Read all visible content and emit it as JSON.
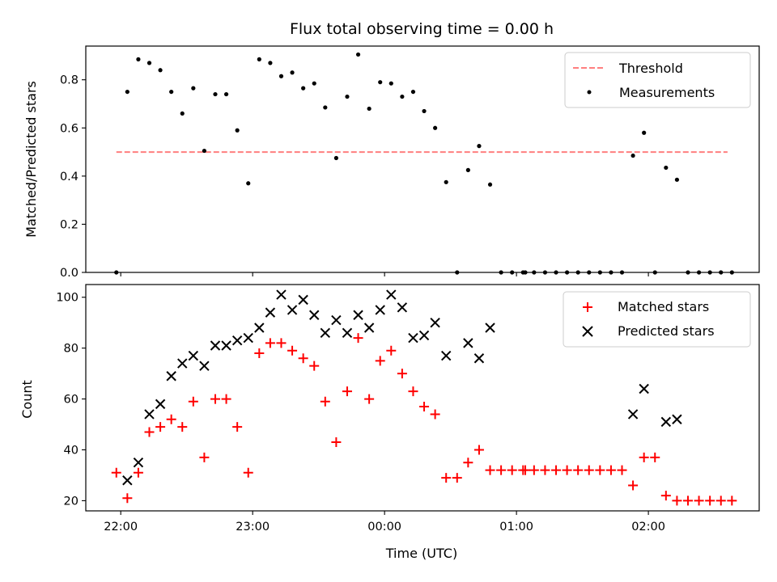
{
  "chart_data": [
    {
      "type": "scatter",
      "title": "Flux total observing time = 0.00 h",
      "xlabel": "",
      "ylabel": "Matched/Predicted stars",
      "ylim": [
        0,
        0.94
      ],
      "yticks": [
        0.0,
        0.2,
        0.4,
        0.6,
        0.8
      ],
      "ytick_labels": [
        "0.0",
        "0.2",
        "0.4",
        "0.6",
        "0.8"
      ],
      "xlim": [
        -15.9,
        290.4
      ],
      "x_unit": "minutes after 22:00 UTC",
      "xticks": [
        0,
        60,
        120,
        180,
        240
      ],
      "xtick_labels": [
        "",
        "",
        "",
        "",
        ""
      ],
      "legend_position": "top-right",
      "threshold": {
        "name": "Threshold",
        "value": 0.5,
        "x_start": -2,
        "x_end": 276,
        "color": "#ff7f7f",
        "style": "dashed"
      },
      "series": [
        {
          "name": "Measurements",
          "color": "#000000",
          "marker": "dot",
          "points": [
            [
              -2,
              0.0
            ],
            [
              3,
              0.75
            ],
            [
              8,
              0.885
            ],
            [
              13,
              0.87
            ],
            [
              18,
              0.84
            ],
            [
              23,
              0.75
            ],
            [
              28,
              0.66
            ],
            [
              33,
              0.765
            ],
            [
              38,
              0.505
            ],
            [
              43,
              0.74
            ],
            [
              48,
              0.74
            ],
            [
              53,
              0.59
            ],
            [
              58,
              0.37
            ],
            [
              63,
              0.885
            ],
            [
              68,
              0.87
            ],
            [
              73,
              0.815
            ],
            [
              78,
              0.83
            ],
            [
              83,
              0.765
            ],
            [
              88,
              0.785
            ],
            [
              93,
              0.685
            ],
            [
              98,
              0.475
            ],
            [
              103,
              0.73
            ],
            [
              108,
              0.905
            ],
            [
              113,
              0.68
            ],
            [
              118,
              0.79
            ],
            [
              123,
              0.785
            ],
            [
              128,
              0.73
            ],
            [
              133,
              0.75
            ],
            [
              138,
              0.67
            ],
            [
              143,
              0.6
            ],
            [
              148,
              0.375
            ],
            [
              153,
              0.0
            ],
            [
              158,
              0.425
            ],
            [
              163,
              0.525
            ],
            [
              168,
              0.365
            ],
            [
              173,
              0.0
            ],
            [
              178,
              0.0
            ],
            [
              183,
              0.0
            ],
            [
              184,
              0.0
            ],
            [
              188,
              0.0
            ],
            [
              193,
              0.0
            ],
            [
              198,
              0.0
            ],
            [
              203,
              0.0
            ],
            [
              208,
              0.0
            ],
            [
              213,
              0.0
            ],
            [
              218,
              0.0
            ],
            [
              223,
              0.0
            ],
            [
              228,
              0.0
            ],
            [
              233,
              0.485
            ],
            [
              238,
              0.58
            ],
            [
              243,
              0.0
            ],
            [
              248,
              0.435
            ],
            [
              253,
              0.385
            ],
            [
              258,
              0.0
            ],
            [
              263,
              0.0
            ],
            [
              268,
              0.0
            ],
            [
              273,
              0.0
            ],
            [
              278,
              0.0
            ]
          ]
        }
      ]
    },
    {
      "type": "scatter",
      "title": "",
      "xlabel": "Time (UTC)",
      "ylabel": "Count",
      "ylim": [
        16,
        105
      ],
      "yticks": [
        20,
        40,
        60,
        80,
        100
      ],
      "ytick_labels": [
        "20",
        "40",
        "60",
        "80",
        "100"
      ],
      "xlim": [
        -15.9,
        290.4
      ],
      "x_unit": "minutes after 22:00 UTC",
      "xticks": [
        0,
        60,
        120,
        180,
        240
      ],
      "xtick_labels": [
        "22:00",
        "23:00",
        "00:00",
        "01:00",
        "02:00"
      ],
      "legend_position": "top-right",
      "series": [
        {
          "name": "Matched stars",
          "color": "#ff0000",
          "marker": "plus",
          "points": [
            [
              -2,
              31
            ],
            [
              3,
              21
            ],
            [
              8,
              31
            ],
            [
              13,
              47
            ],
            [
              18,
              49
            ],
            [
              23,
              52
            ],
            [
              28,
              49
            ],
            [
              33,
              59
            ],
            [
              38,
              37
            ],
            [
              43,
              60
            ],
            [
              48,
              60
            ],
            [
              53,
              49
            ],
            [
              58,
              31
            ],
            [
              63,
              78
            ],
            [
              68,
              82
            ],
            [
              73,
              82
            ],
            [
              78,
              79
            ],
            [
              83,
              76
            ],
            [
              88,
              73
            ],
            [
              93,
              59
            ],
            [
              98,
              43
            ],
            [
              103,
              63
            ],
            [
              108,
              84
            ],
            [
              113,
              60
            ],
            [
              118,
              75
            ],
            [
              123,
              79
            ],
            [
              128,
              70
            ],
            [
              133,
              63
            ],
            [
              138,
              57
            ],
            [
              143,
              54
            ],
            [
              148,
              29
            ],
            [
              153,
              29
            ],
            [
              158,
              35
            ],
            [
              163,
              40
            ],
            [
              168,
              32
            ],
            [
              173,
              32
            ],
            [
              178,
              32
            ],
            [
              183,
              32
            ],
            [
              184,
              32
            ],
            [
              188,
              32
            ],
            [
              193,
              32
            ],
            [
              198,
              32
            ],
            [
              203,
              32
            ],
            [
              208,
              32
            ],
            [
              213,
              32
            ],
            [
              218,
              32
            ],
            [
              223,
              32
            ],
            [
              228,
              32
            ],
            [
              233,
              26
            ],
            [
              238,
              37
            ],
            [
              243,
              37
            ],
            [
              248,
              22
            ],
            [
              253,
              20
            ],
            [
              258,
              20
            ],
            [
              263,
              20
            ],
            [
              268,
              20
            ],
            [
              273,
              20
            ],
            [
              278,
              20
            ]
          ]
        },
        {
          "name": "Predicted stars",
          "color": "#000000",
          "marker": "x",
          "points": [
            [
              3,
              28
            ],
            [
              8,
              35
            ],
            [
              13,
              54
            ],
            [
              18,
              58
            ],
            [
              23,
              69
            ],
            [
              28,
              74
            ],
            [
              33,
              77
            ],
            [
              38,
              73
            ],
            [
              43,
              81
            ],
            [
              48,
              81
            ],
            [
              53,
              83
            ],
            [
              58,
              84
            ],
            [
              63,
              88
            ],
            [
              68,
              94
            ],
            [
              73,
              101
            ],
            [
              78,
              95
            ],
            [
              83,
              99
            ],
            [
              88,
              93
            ],
            [
              93,
              86
            ],
            [
              98,
              91
            ],
            [
              103,
              86
            ],
            [
              108,
              93
            ],
            [
              113,
              88
            ],
            [
              118,
              95
            ],
            [
              123,
              101
            ],
            [
              128,
              96
            ],
            [
              133,
              84
            ],
            [
              138,
              85
            ],
            [
              143,
              90
            ],
            [
              148,
              77
            ],
            [
              158,
              82
            ],
            [
              163,
              76
            ],
            [
              168,
              88
            ],
            [
              233,
              54
            ],
            [
              238,
              64
            ],
            [
              248,
              51
            ],
            [
              253,
              52
            ]
          ]
        }
      ]
    }
  ]
}
